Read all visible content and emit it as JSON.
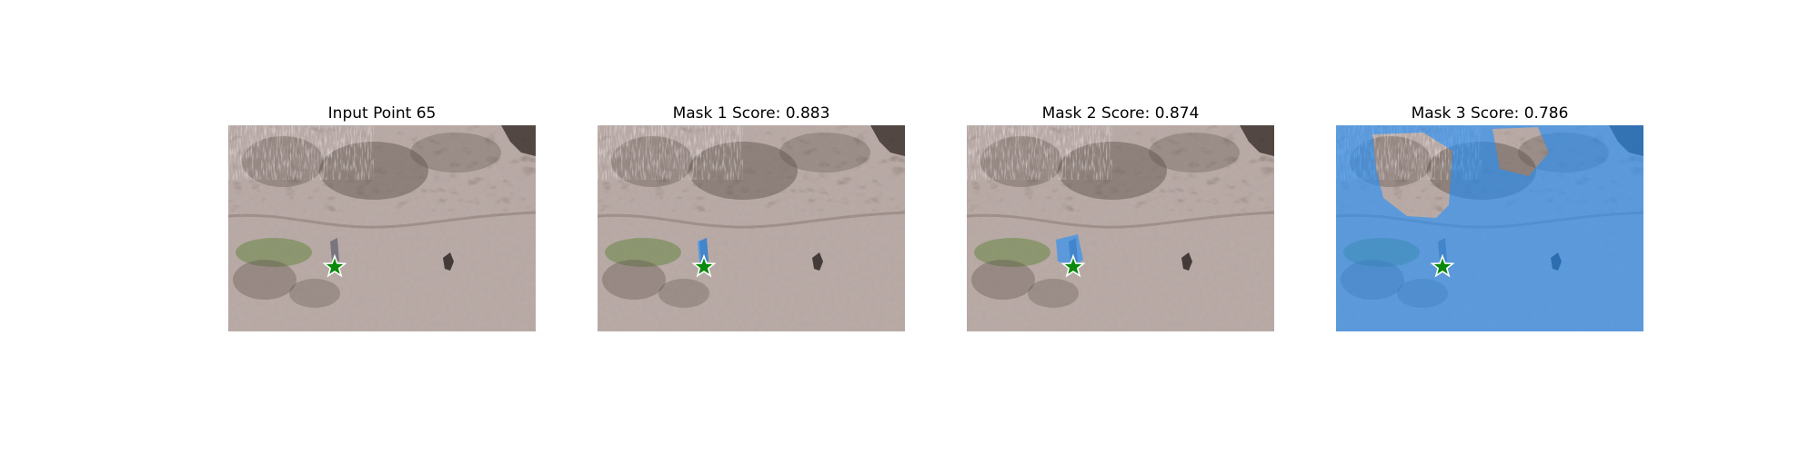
{
  "figure": {
    "panels": [
      {
        "title": "Input Point 65",
        "mask": "none",
        "point_label": "foreground"
      },
      {
        "title": "Mask 1 Score: 0.883",
        "mask": "small",
        "point_label": "foreground"
      },
      {
        "title": "Mask 2 Score: 0.874",
        "mask": "medium",
        "point_label": "foreground"
      },
      {
        "title": "Mask 3 Score: 0.786",
        "mask": "large",
        "point_label": "foreground"
      }
    ],
    "colors": {
      "ground": "#b9aaa6",
      "vegetation_dark": "#5b4d47",
      "grass_green": "#6e8a4c",
      "mask_blue": "#1e90ff",
      "star_fill": "#0a8a0a",
      "star_edge": "#ffffff"
    }
  }
}
